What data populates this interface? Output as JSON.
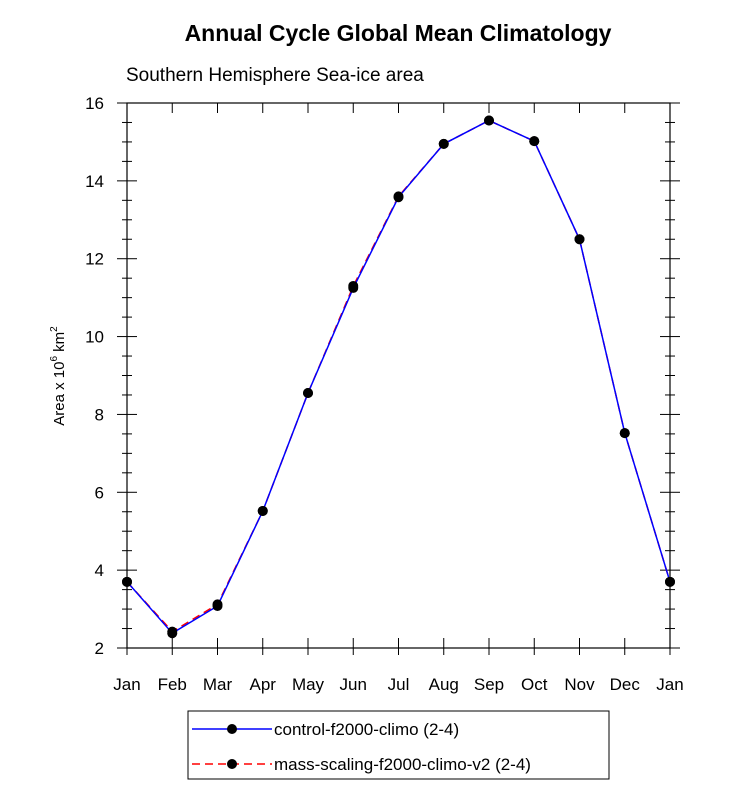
{
  "chart_data": {
    "type": "line",
    "title": "Annual Cycle Global Mean Climatology",
    "subtitle": "Southern Hemisphere Sea-ice area",
    "ylabel": {
      "prefix": "Area x 10",
      "exp1": "6",
      "mid": " km",
      "exp2": "2"
    },
    "xlabel": "",
    "categories": [
      "Jan",
      "Feb",
      "Mar",
      "Apr",
      "May",
      "Jun",
      "Jul",
      "Aug",
      "Sep",
      "Oct",
      "Nov",
      "Dec",
      "Jan"
    ],
    "ylim": [
      2,
      16
    ],
    "yticks": [
      2,
      4,
      6,
      8,
      10,
      12,
      14,
      16
    ],
    "grid": false,
    "legend_position": "bottom-center",
    "series": [
      {
        "name": "control-f2000-climo (2-4)",
        "color": "#0000ff",
        "dash": "solid",
        "values": [
          3.7,
          2.38,
          3.08,
          5.52,
          8.55,
          11.25,
          13.58,
          14.95,
          15.55,
          15.02,
          12.5,
          7.52,
          3.7
        ]
      },
      {
        "name": "mass-scaling-f2000-climo-v2 (2-4)",
        "color": "#ff0000",
        "dash": "dashed",
        "values": [
          3.7,
          2.42,
          3.12,
          5.52,
          8.55,
          11.3,
          13.6,
          14.95,
          15.55,
          15.02,
          12.5,
          7.52,
          3.7
        ]
      }
    ]
  }
}
